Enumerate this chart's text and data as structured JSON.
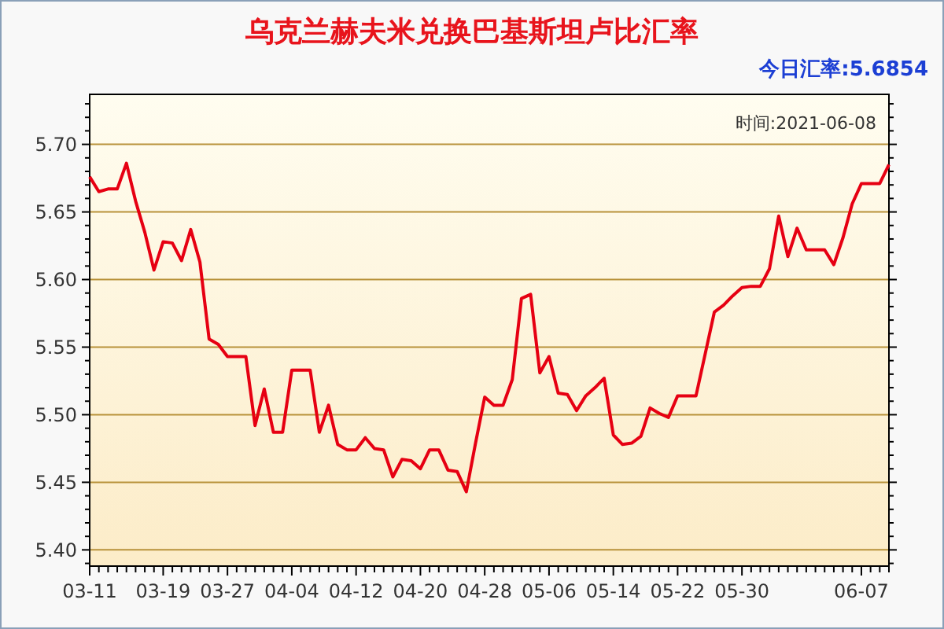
{
  "chart_data": {
    "type": "line",
    "title": "乌克兰赫夫米兑换巴基斯坦卢比汇率",
    "annotations": [
      "今日汇率:5.6854",
      "时间:2021-06-08"
    ],
    "categories": [
      "03-11",
      null,
      null,
      null,
      null,
      null,
      null,
      null,
      "03-19",
      null,
      null,
      null,
      null,
      null,
      null,
      "03-27",
      null,
      null,
      null,
      null,
      null,
      null,
      "04-04",
      null,
      null,
      null,
      null,
      null,
      null,
      "04-12",
      null,
      null,
      null,
      null,
      null,
      null,
      "04-20",
      null,
      null,
      null,
      null,
      null,
      null,
      "04-28",
      null,
      null,
      null,
      null,
      null,
      null,
      "05-06",
      null,
      null,
      null,
      null,
      null,
      null,
      "05-14",
      null,
      null,
      null,
      null,
      null,
      null,
      "05-22",
      null,
      null,
      null,
      null,
      null,
      null,
      "05-30",
      null,
      null,
      null,
      null,
      null,
      null,
      null,
      null,
      null,
      null,
      null,
      null,
      "06-07",
      null,
      null,
      null
    ],
    "series": [
      {
        "color": "#e60012",
        "values": [
          5.676,
          5.665,
          5.667,
          5.667,
          5.686,
          5.658,
          5.635,
          5.607,
          5.628,
          5.627,
          5.614,
          5.637,
          5.613,
          5.556,
          5.552,
          5.543,
          5.543,
          5.543,
          5.492,
          5.519,
          5.487,
          5.487,
          5.533,
          5.533,
          5.533,
          5.487,
          5.507,
          5.478,
          5.474,
          5.474,
          5.483,
          5.475,
          5.474,
          5.454,
          5.467,
          5.466,
          5.46,
          5.474,
          5.474,
          5.459,
          5.458,
          5.443,
          5.479,
          5.513,
          5.507,
          5.507,
          5.526,
          5.586,
          5.589,
          5.531,
          5.543,
          5.516,
          5.515,
          5.503,
          5.514,
          5.52,
          5.527,
          5.485,
          5.478,
          5.479,
          5.484,
          5.505,
          5.501,
          5.498,
          5.514,
          5.514,
          5.514,
          5.545,
          5.576,
          5.581,
          5.588,
          5.594,
          5.595,
          5.595,
          5.608,
          5.647,
          5.617,
          5.638,
          5.622,
          5.622,
          5.622,
          5.611,
          5.631,
          5.656,
          5.671,
          5.671,
          5.671,
          5.685
        ]
      }
    ],
    "ylim": [
      5.388,
      5.737
    ],
    "yticks": [
      {
        "value": 5.39,
        "label": null
      },
      {
        "value": 5.4,
        "label": "5.40"
      },
      {
        "value": 5.41,
        "label": null
      },
      {
        "value": 5.42,
        "label": null
      },
      {
        "value": 5.43,
        "label": null
      },
      {
        "value": 5.44,
        "label": null
      },
      {
        "value": 5.45,
        "label": "5.45"
      },
      {
        "value": 5.46,
        "label": null
      },
      {
        "value": 5.47,
        "label": null
      },
      {
        "value": 5.48,
        "label": null
      },
      {
        "value": 5.49,
        "label": null
      },
      {
        "value": 5.5,
        "label": "5.50"
      },
      {
        "value": 5.51,
        "label": null
      },
      {
        "value": 5.52,
        "label": null
      },
      {
        "value": 5.53,
        "label": null
      },
      {
        "value": 5.54,
        "label": null
      },
      {
        "value": 5.55,
        "label": "5.55"
      },
      {
        "value": 5.56,
        "label": null
      },
      {
        "value": 5.57,
        "label": null
      },
      {
        "value": 5.58,
        "label": null
      },
      {
        "value": 5.59,
        "label": null
      },
      {
        "value": 5.6,
        "label": "5.60"
      },
      {
        "value": 5.61,
        "label": null
      },
      {
        "value": 5.62,
        "label": null
      },
      {
        "value": 5.63,
        "label": null
      },
      {
        "value": 5.64,
        "label": null
      },
      {
        "value": 5.65,
        "label": "5.65"
      },
      {
        "value": 5.66,
        "label": null
      },
      {
        "value": 5.67,
        "label": null
      },
      {
        "value": 5.68,
        "label": null
      },
      {
        "value": 5.69,
        "label": null
      },
      {
        "value": 5.7,
        "label": "5.70"
      },
      {
        "value": 5.71,
        "label": null
      },
      {
        "value": 5.72,
        "label": null
      },
      {
        "value": 5.73,
        "label": null
      }
    ],
    "grid": "y",
    "marker": "none",
    "line_style": "solid"
  }
}
